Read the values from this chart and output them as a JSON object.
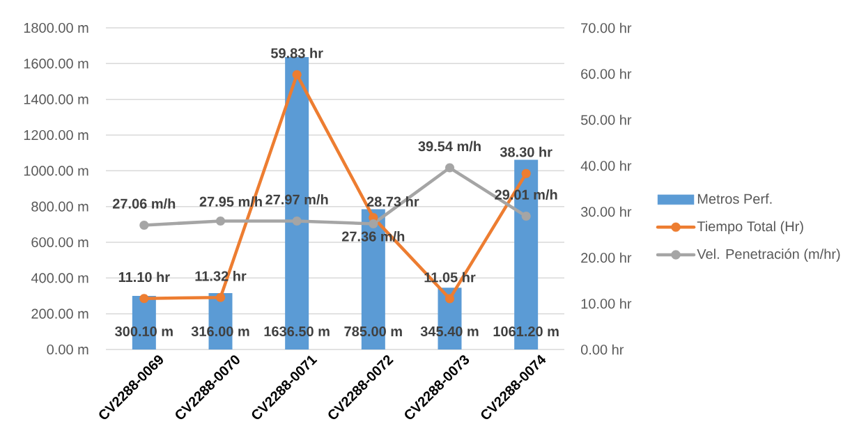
{
  "chart_data": {
    "type": "bar",
    "categories": [
      "CV2288-0069",
      "CV2288-0070",
      "CV2288-0071",
      "CV2288-0072",
      "CV2288-0073",
      "CV2288-0074"
    ],
    "series": [
      {
        "name": "Metros Perf.",
        "color": "#5b9bd5",
        "values": [
          300.1,
          316.0,
          1636.5,
          785.0,
          345.4,
          1061.2
        ],
        "value_labels": [
          "300.10 m",
          "316.00 m",
          "1636.50 m",
          "785.00 m",
          "345.40 m",
          "1061.20 m"
        ]
      },
      {
        "name": "Tiempo Total (Hr)",
        "type": "line",
        "axis": "y2",
        "color": "#ed7d31",
        "values": [
          11.1,
          11.32,
          59.83,
          28.73,
          11.05,
          38.3
        ],
        "value_labels": [
          "11.10 hr",
          "11.32 hr",
          "59.83 hr",
          "28.73 hr",
          "11.05 hr",
          "38.30 hr"
        ]
      },
      {
        "name": "Vel. Penetración (m/hr)",
        "type": "line",
        "axis": "y2",
        "color": "#a5a5a5",
        "values": [
          27.06,
          27.95,
          27.97,
          27.36,
          39.54,
          29.01
        ],
        "value_labels": [
          "27.06 m/h",
          "27.95 m/h",
          "27.97 m/h",
          "27.36 m/h",
          "39.54 m/h",
          "29.01 m/h"
        ]
      }
    ],
    "ylim": [
      0,
      1800
    ],
    "yticks": [
      {
        "value": 0,
        "label": "0.00 m"
      },
      {
        "value": 200,
        "label": "200.00 m"
      },
      {
        "value": 400,
        "label": "400.00 m"
      },
      {
        "value": 600,
        "label": "600.00 m"
      },
      {
        "value": 800,
        "label": "800.00 m"
      },
      {
        "value": 1000,
        "label": "1000.00 m"
      },
      {
        "value": 1200,
        "label": "1200.00 m"
      },
      {
        "value": 1400,
        "label": "1400.00 m"
      },
      {
        "value": 1600,
        "label": "1600.00 m"
      },
      {
        "value": 1800,
        "label": "1800.00 m"
      }
    ],
    "y2lim": [
      0,
      70
    ],
    "y2ticks": [
      {
        "value": 0,
        "label": "0.00 hr"
      },
      {
        "value": 10,
        "label": "10.00 hr"
      },
      {
        "value": 20,
        "label": "20.00 hr"
      },
      {
        "value": 30,
        "label": "30.00 hr"
      },
      {
        "value": 40,
        "label": "40.00 hr"
      },
      {
        "value": 50,
        "label": "50.00 hr"
      },
      {
        "value": 60,
        "label": "60.00 hr"
      },
      {
        "value": 70,
        "label": "70.00 hr"
      }
    ],
    "grid": "y",
    "legend": "right",
    "marker": "circle",
    "line_style": "solid"
  }
}
